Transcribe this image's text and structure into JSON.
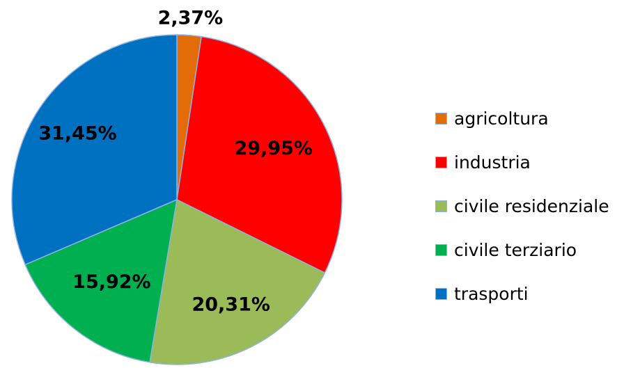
{
  "chart_data": {
    "type": "pie",
    "categories": [
      "agricoltura",
      "industria",
      "civile residenziale",
      "civile terziario",
      "trasporti"
    ],
    "values": [
      2.37,
      29.95,
      20.31,
      15.92,
      31.45
    ],
    "labels": [
      "2,37%",
      "29,95%",
      "20,31%",
      "15,92%",
      "31,45%"
    ],
    "colors": [
      "#E36C09",
      "#FF0000",
      "#9BBB59",
      "#00B050",
      "#0070C0"
    ],
    "start_angle": "12 o'clock",
    "direction": "clockwise",
    "legend_position": "right",
    "slice_border_color": "#8DB3E2"
  }
}
